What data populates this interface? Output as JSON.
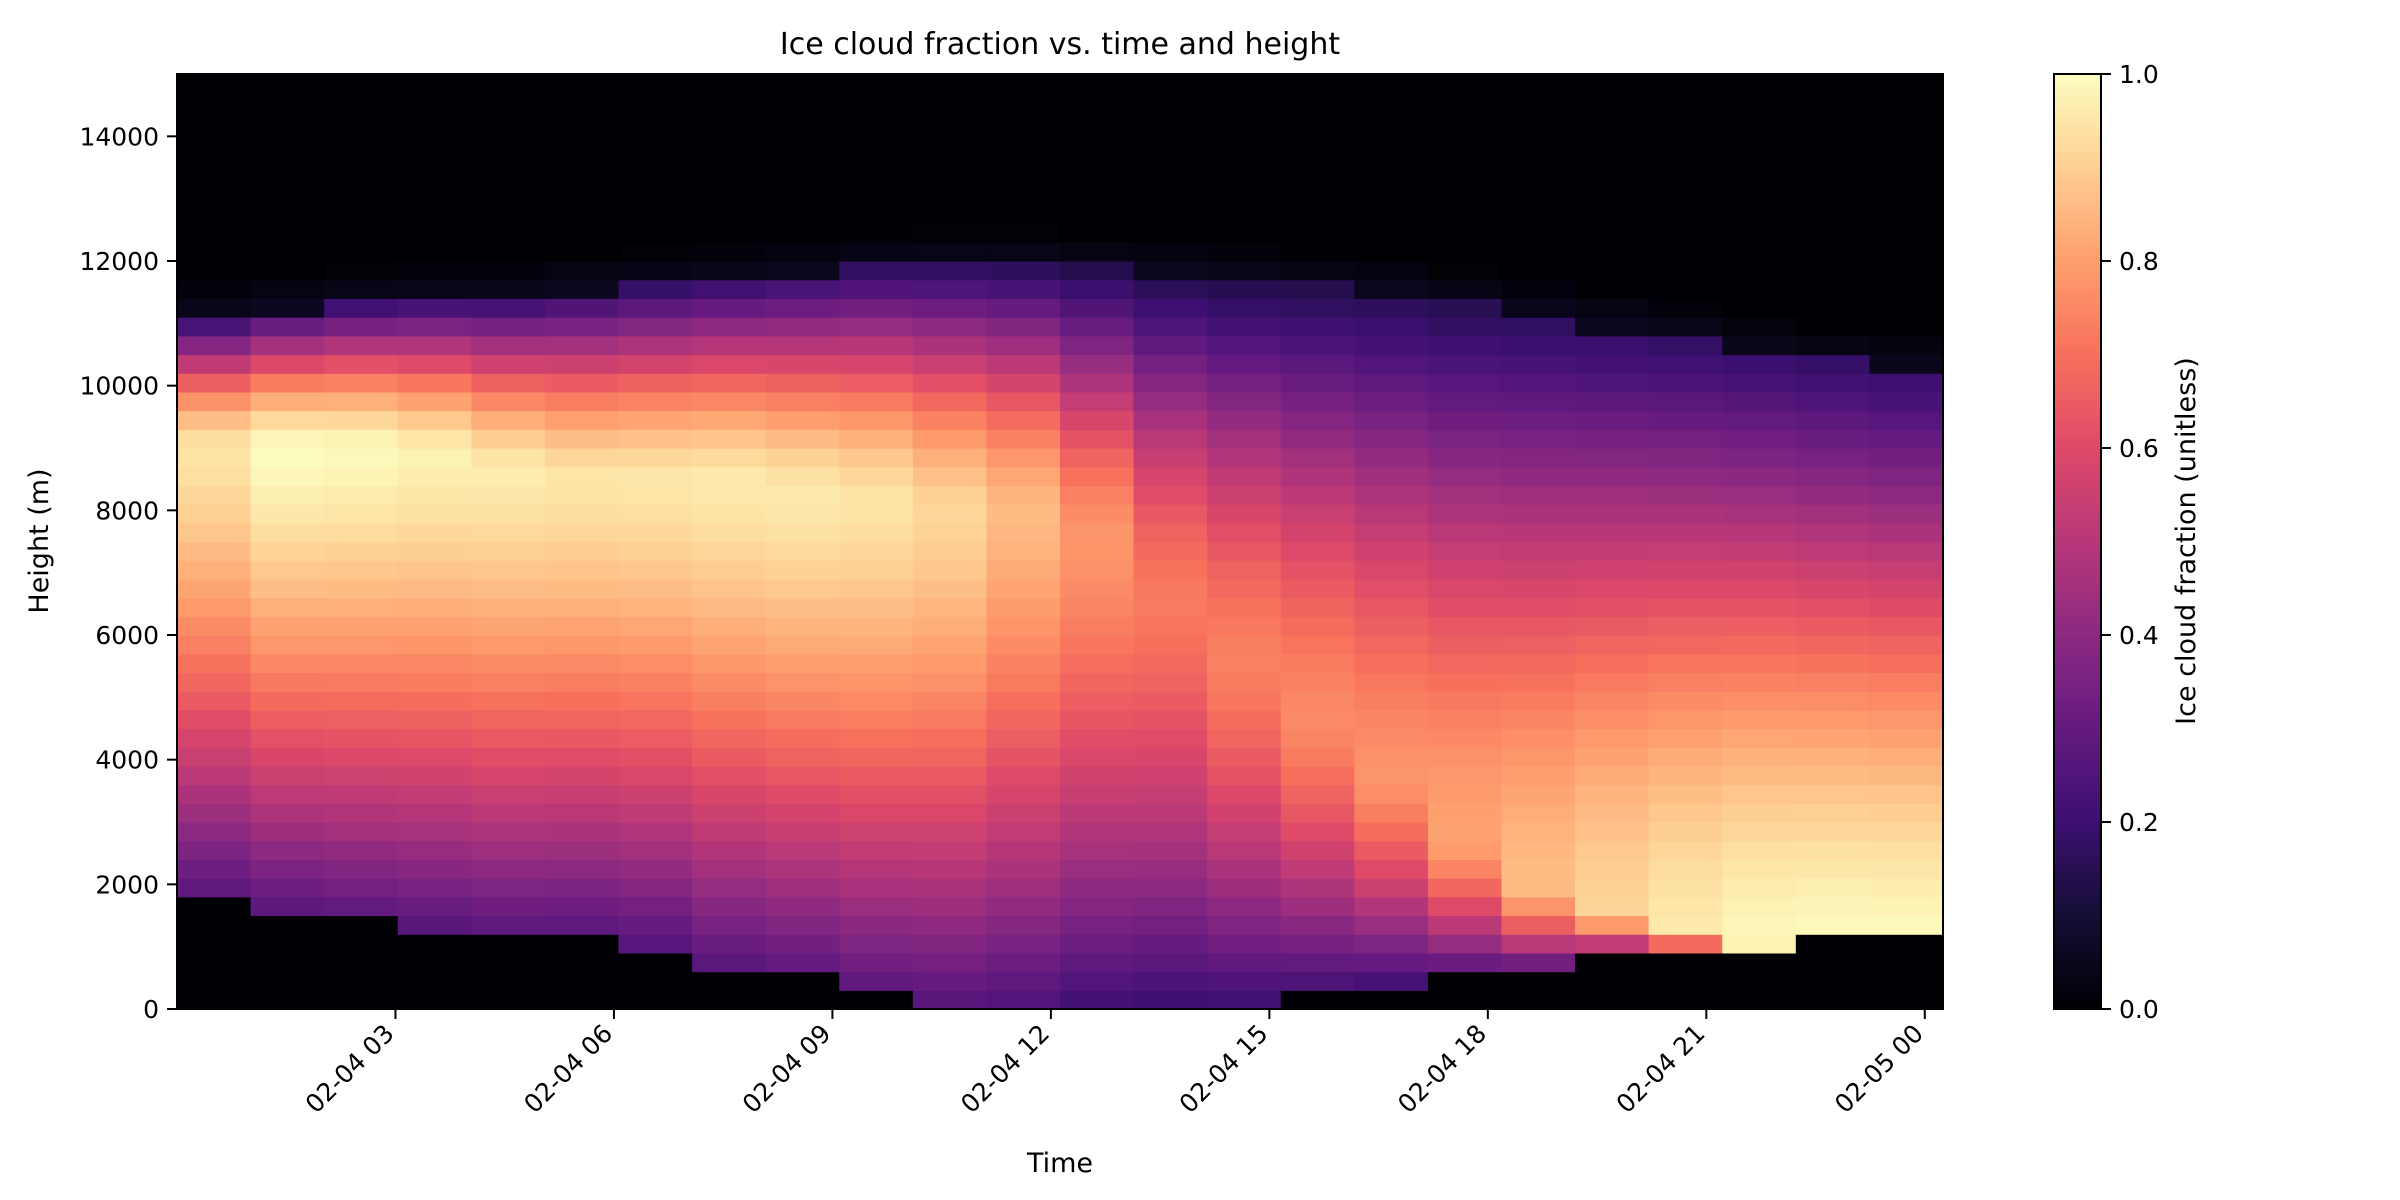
{
  "chart_data": {
    "type": "heatmap",
    "title": "Ice cloud fraction vs. time and height",
    "xlabel": "Time",
    "ylabel": "Height (m)",
    "colorbar_label": "Ice cloud fraction (unitless)",
    "colormap": "magma",
    "x_start": "02-04 00:00",
    "x_end": "02-05 00:15",
    "x_step_minutes": 60,
    "x_ticks": [
      "02-04 03",
      "02-04 06",
      "02-04 09",
      "02-04 12",
      "02-04 15",
      "02-04 18",
      "02-04 21",
      "02-05 00"
    ],
    "y_ticks": [
      0,
      2000,
      4000,
      6000,
      8000,
      10000,
      12000,
      14000
    ],
    "ylim": [
      0,
      15000
    ],
    "colorbar_ticks": [
      "0.0",
      "0.2",
      "0.4",
      "0.6",
      "0.8",
      "1.0"
    ],
    "clim": [
      0,
      1
    ],
    "color_stops": [
      "#000004",
      "#1b0c41",
      "#4a0c6b",
      "#781c6d",
      "#a52c60",
      "#cf4446",
      "#ed6925",
      "#fb9b06",
      "#f7d13d",
      "#fcfdbf"
    ],
    "magma_stops": [
      "#000004",
      "#140e36",
      "#3b0f70",
      "#641a80",
      "#8c2981",
      "#b73779",
      "#de4968",
      "#f7705c",
      "#fe9f6d",
      "#fecf92",
      "#fcfdbf"
    ],
    "cloud_base_m": [
      1800,
      1800,
      1700,
      1650,
      1600,
      1500,
      1450,
      1400,
      1350,
      1300,
      1200,
      1200,
      1200,
      1200,
      1050,
      1000,
      700,
      600,
      500,
      400,
      300,
      200,
      100,
      0,
      0,
      0,
      0,
      100,
      100,
      100,
      100,
      100,
      100,
      150,
      250,
      350,
      400,
      450,
      500,
      550,
      600,
      700,
      800,
      850,
      900,
      950,
      1000,
      1000,
      1050,
      1100,
      1150,
      1200,
      1200
    ],
    "cloud_top_m": [
      11000,
      11200,
      11300,
      11400,
      11400,
      11500,
      11600,
      11700,
      11800,
      11900,
      11900,
      11900,
      11800,
      11700,
      11600,
      11500,
      11300,
      11100,
      10900,
      10700,
      10500,
      10300,
      10200
    ],
    "peak_height_m": [
      9000,
      9000,
      9000,
      9000,
      8700,
      8500,
      8500,
      8500,
      8300,
      8200,
      8000,
      8000,
      7500,
      6500,
      5500,
      4500,
      3500,
      2500,
      1800,
      1500,
      1200,
      1000,
      900,
      900
    ],
    "peak_value": [
      0.9,
      1.0,
      1.0,
      0.98,
      0.97,
      0.95,
      0.95,
      0.96,
      0.96,
      0.95,
      0.92,
      0.86,
      0.78,
      0.72,
      0.74,
      0.76,
      0.78,
      0.82,
      0.88,
      0.93,
      0.97,
      1.0,
      1.0,
      1.0
    ]
  }
}
